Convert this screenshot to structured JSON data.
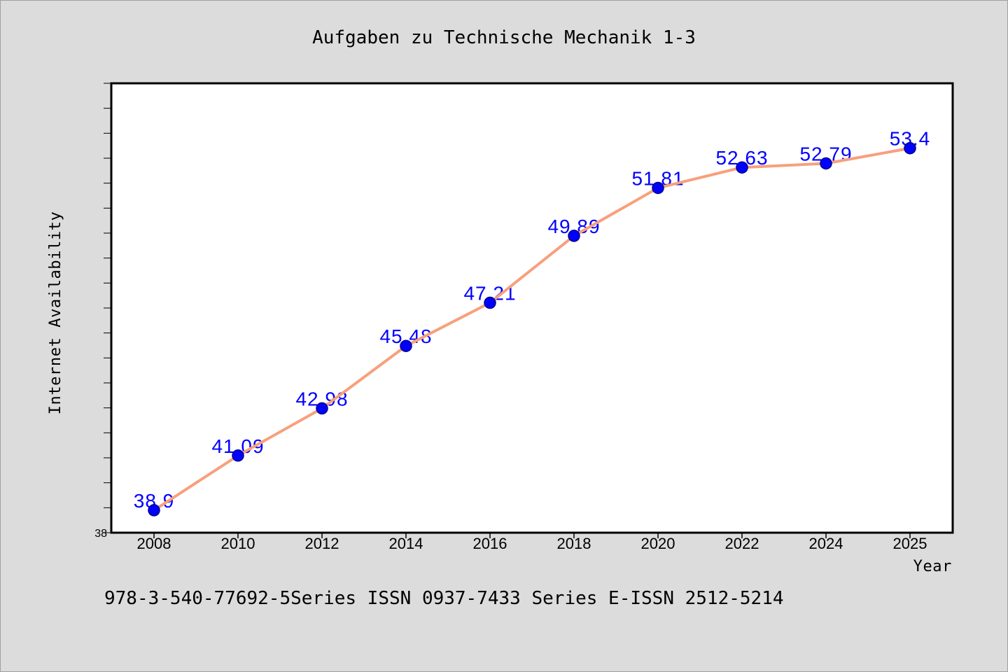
{
  "colors": {
    "background": "#dcdcdc",
    "border": "#a0a0a0",
    "plot_background": "#ffffff",
    "axis": "#000000",
    "line": "#f7a07c",
    "marker": "#0000ff",
    "marker_edge": "#00008b",
    "data_label": "#0000ff"
  },
  "chart_data": {
    "type": "line",
    "title": "Aufgaben zu Technische Mechanik 1-3",
    "xlabel": "Year",
    "ylabel": "Internet Availability",
    "categories": [
      "2008",
      "2010",
      "2012",
      "2014",
      "2016",
      "2018",
      "2020",
      "2022",
      "2024",
      "2025"
    ],
    "values": [
      38.9,
      41.09,
      42.98,
      45.48,
      47.21,
      49.89,
      51.81,
      52.63,
      52.79,
      53.4
    ],
    "data_labels": [
      "38.9",
      "41.09",
      "42.98",
      "45.48",
      "47.21",
      "49.89",
      "51.81",
      "52.63",
      "52.79",
      "53.4"
    ],
    "ylim": [
      38,
      56
    ],
    "y_tick_labels": [
      "38"
    ],
    "y_minor_tick_step": 1,
    "grid": false
  },
  "footer": "978-3-540-77692-5Series ISSN 0937-7433 Series E-ISSN 2512-5214"
}
